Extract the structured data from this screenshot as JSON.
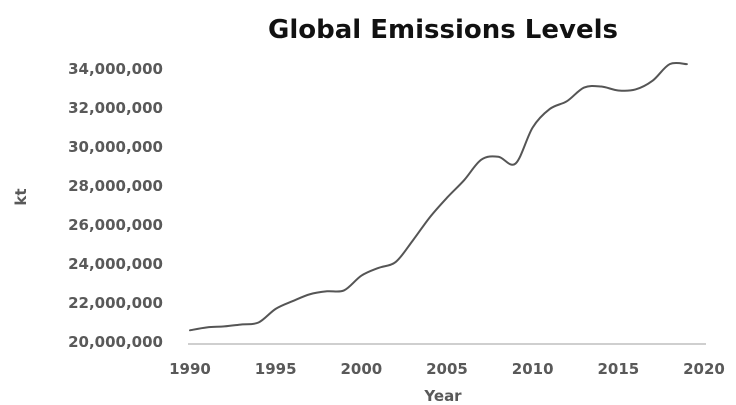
{
  "chart_data": {
    "type": "line",
    "title": "Global Emissions Levels",
    "xlabel": "Year",
    "ylabel": "kt",
    "xlim": [
      1990,
      2020
    ],
    "ylim": [
      20000000,
      34000000
    ],
    "x_ticks": [
      "1990",
      "1995",
      "2000",
      "2005",
      "2010",
      "2015",
      "2020"
    ],
    "y_ticks": [
      "20,000,000",
      "22,000,000",
      "24,000,000",
      "26,000,000",
      "28,000,000",
      "30,000,000",
      "32,000,000",
      "34,000,000"
    ],
    "grid": false,
    "legend": "none",
    "line_color": "#555555",
    "series": [
      {
        "x": [
          1990,
          1991,
          1992,
          1993,
          1994,
          1995,
          1996,
          1997,
          1998,
          1999,
          2000,
          2001,
          2002,
          2003,
          2004,
          2005,
          2006,
          2007,
          2008,
          2009,
          2010,
          2011,
          2012,
          2013,
          2014,
          2015,
          2016,
          2017,
          2018,
          2019
        ],
        "values": [
          20600000,
          20750000,
          20800000,
          20900000,
          21000000,
          21700000,
          22100000,
          22450000,
          22600000,
          22650000,
          23400000,
          23800000,
          24100000,
          25200000,
          26400000,
          27400000,
          28300000,
          29350000,
          29500000,
          29150000,
          31000000,
          31950000,
          32350000,
          33050000,
          33100000,
          32900000,
          32950000,
          33400000,
          34250000,
          34250000
        ]
      }
    ]
  }
}
